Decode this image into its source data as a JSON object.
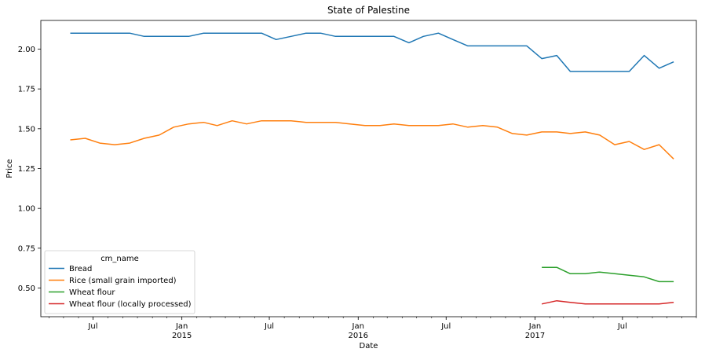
{
  "chart_data": {
    "type": "line",
    "title": "State of Palestine",
    "xlabel": "Date",
    "ylabel": "Price",
    "x_axis": {
      "type": "date",
      "range": [
        "2014-03-15",
        "2017-12-01"
      ],
      "major_ticks": [
        {
          "date": "2014-07-01",
          "label": "Jul",
          "sublabel": ""
        },
        {
          "date": "2015-01-01",
          "label": "Jan",
          "sublabel": "2015"
        },
        {
          "date": "2015-07-01",
          "label": "Jul",
          "sublabel": ""
        },
        {
          "date": "2016-01-01",
          "label": "Jan",
          "sublabel": "2016"
        },
        {
          "date": "2016-07-01",
          "label": "Jul",
          "sublabel": ""
        },
        {
          "date": "2017-01-01",
          "label": "Jan",
          "sublabel": "2017"
        },
        {
          "date": "2017-07-01",
          "label": "Jul",
          "sublabel": ""
        }
      ],
      "minor_tick_interval": "month"
    },
    "y_axis": {
      "range": [
        0.32,
        2.18
      ],
      "ticks": [
        {
          "value": 0.5,
          "label": "0.50"
        },
        {
          "value": 0.75,
          "label": "0.75"
        },
        {
          "value": 1.0,
          "label": "1.00"
        },
        {
          "value": 1.25,
          "label": "1.25"
        },
        {
          "value": 1.5,
          "label": "1.50"
        },
        {
          "value": 1.75,
          "label": "1.75"
        },
        {
          "value": 2.0,
          "label": "2.00"
        }
      ]
    },
    "grid": false,
    "legend": {
      "title": "cm_name",
      "position": "lower-left"
    },
    "series": [
      {
        "name": "Bread",
        "color": "#1f77b4",
        "points": [
          [
            "2014-05-15",
            2.1
          ],
          [
            "2014-06-15",
            2.1
          ],
          [
            "2014-07-15",
            2.1
          ],
          [
            "2014-08-15",
            2.1
          ],
          [
            "2014-09-15",
            2.1
          ],
          [
            "2014-10-15",
            2.08
          ],
          [
            "2014-11-15",
            2.08
          ],
          [
            "2014-12-15",
            2.08
          ],
          [
            "2015-01-15",
            2.08
          ],
          [
            "2015-02-15",
            2.1
          ],
          [
            "2015-03-15",
            2.1
          ],
          [
            "2015-04-15",
            2.1
          ],
          [
            "2015-05-15",
            2.1
          ],
          [
            "2015-06-15",
            2.1
          ],
          [
            "2015-07-15",
            2.06
          ],
          [
            "2015-08-15",
            2.08
          ],
          [
            "2015-09-15",
            2.1
          ],
          [
            "2015-10-15",
            2.1
          ],
          [
            "2015-11-15",
            2.08
          ],
          [
            "2015-12-15",
            2.08
          ],
          [
            "2016-01-15",
            2.08
          ],
          [
            "2016-02-15",
            2.08
          ],
          [
            "2016-03-15",
            2.08
          ],
          [
            "2016-04-15",
            2.04
          ],
          [
            "2016-05-15",
            2.08
          ],
          [
            "2016-06-15",
            2.1
          ],
          [
            "2016-07-15",
            2.06
          ],
          [
            "2016-08-15",
            2.02
          ],
          [
            "2016-09-15",
            2.02
          ],
          [
            "2016-10-15",
            2.02
          ],
          [
            "2016-11-15",
            2.02
          ],
          [
            "2016-12-15",
            2.02
          ],
          [
            "2017-01-15",
            1.94
          ],
          [
            "2017-02-15",
            1.96
          ],
          [
            "2017-03-15",
            1.86
          ],
          [
            "2017-04-15",
            1.86
          ],
          [
            "2017-05-15",
            1.86
          ],
          [
            "2017-06-15",
            1.86
          ],
          [
            "2017-07-15",
            1.86
          ],
          [
            "2017-08-15",
            1.96
          ],
          [
            "2017-09-15",
            1.88
          ],
          [
            "2017-10-15",
            1.92
          ]
        ]
      },
      {
        "name": "Rice (small grain imported)",
        "color": "#ff7f0e",
        "points": [
          [
            "2014-05-15",
            1.43
          ],
          [
            "2014-06-15",
            1.44
          ],
          [
            "2014-07-15",
            1.41
          ],
          [
            "2014-08-15",
            1.4
          ],
          [
            "2014-09-15",
            1.41
          ],
          [
            "2014-10-15",
            1.44
          ],
          [
            "2014-11-15",
            1.46
          ],
          [
            "2014-12-15",
            1.51
          ],
          [
            "2015-01-15",
            1.53
          ],
          [
            "2015-02-15",
            1.54
          ],
          [
            "2015-03-15",
            1.52
          ],
          [
            "2015-04-15",
            1.55
          ],
          [
            "2015-05-15",
            1.53
          ],
          [
            "2015-06-15",
            1.55
          ],
          [
            "2015-07-15",
            1.55
          ],
          [
            "2015-08-15",
            1.55
          ],
          [
            "2015-09-15",
            1.54
          ],
          [
            "2015-10-15",
            1.54
          ],
          [
            "2015-11-15",
            1.54
          ],
          [
            "2015-12-15",
            1.53
          ],
          [
            "2016-01-15",
            1.52
          ],
          [
            "2016-02-15",
            1.52
          ],
          [
            "2016-03-15",
            1.53
          ],
          [
            "2016-04-15",
            1.52
          ],
          [
            "2016-05-15",
            1.52
          ],
          [
            "2016-06-15",
            1.52
          ],
          [
            "2016-07-15",
            1.53
          ],
          [
            "2016-08-15",
            1.51
          ],
          [
            "2016-09-15",
            1.52
          ],
          [
            "2016-10-15",
            1.51
          ],
          [
            "2016-11-15",
            1.47
          ],
          [
            "2016-12-15",
            1.46
          ],
          [
            "2017-01-15",
            1.48
          ],
          [
            "2017-02-15",
            1.48
          ],
          [
            "2017-03-15",
            1.47
          ],
          [
            "2017-04-15",
            1.48
          ],
          [
            "2017-05-15",
            1.46
          ],
          [
            "2017-06-15",
            1.4
          ],
          [
            "2017-07-15",
            1.42
          ],
          [
            "2017-08-15",
            1.37
          ],
          [
            "2017-09-15",
            1.4
          ],
          [
            "2017-10-15",
            1.31
          ]
        ]
      },
      {
        "name": "Wheat flour",
        "color": "#2ca02c",
        "points": [
          [
            "2017-01-15",
            0.63
          ],
          [
            "2017-02-15",
            0.63
          ],
          [
            "2017-03-15",
            0.59
          ],
          [
            "2017-04-15",
            0.59
          ],
          [
            "2017-05-15",
            0.6
          ],
          [
            "2017-06-15",
            0.59
          ],
          [
            "2017-07-15",
            0.58
          ],
          [
            "2017-08-15",
            0.57
          ],
          [
            "2017-09-15",
            0.54
          ],
          [
            "2017-10-15",
            0.54
          ]
        ]
      },
      {
        "name": "Wheat flour (locally processed)",
        "color": "#d62728",
        "points": [
          [
            "2017-01-15",
            0.4
          ],
          [
            "2017-02-15",
            0.42
          ],
          [
            "2017-03-15",
            0.41
          ],
          [
            "2017-04-15",
            0.4
          ],
          [
            "2017-05-15",
            0.4
          ],
          [
            "2017-06-15",
            0.4
          ],
          [
            "2017-07-15",
            0.4
          ],
          [
            "2017-08-15",
            0.4
          ],
          [
            "2017-09-15",
            0.4
          ],
          [
            "2017-10-15",
            0.41
          ]
        ]
      }
    ]
  }
}
